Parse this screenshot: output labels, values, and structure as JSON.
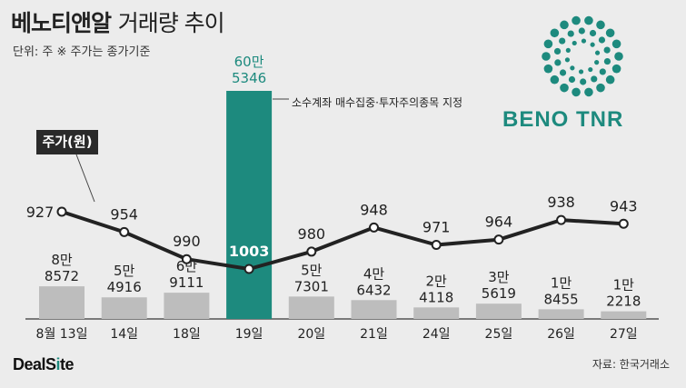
{
  "title": {
    "main": "베노티앤알",
    "sub": "거래량 추이"
  },
  "unit_note": "단위: 주  ※ 주가는 종가기준",
  "logo_text": "BENO TNR",
  "brand": {
    "part1": "DealS",
    "part2": "i",
    "part3": "te"
  },
  "source": "자료: 한국거래소",
  "annotation": "소수계좌 매수집중·투자주의종목 지정",
  "legend_label": "주가(원)",
  "colors": {
    "bar": "#bdbdbd",
    "highlight_bar": "#1d8a7e",
    "line": "#222222",
    "accent": "#1d8a7e"
  },
  "chart_data": {
    "type": "bar",
    "categories": [
      "8월 13일",
      "14일",
      "18일",
      "19일",
      "20일",
      "21일",
      "24일",
      "25일",
      "26일",
      "27일"
    ],
    "volume_labels": [
      [
        "8만",
        "8572"
      ],
      [
        "5만",
        "4916"
      ],
      [
        "6만",
        "9111"
      ],
      [
        "60만",
        "5346"
      ],
      [
        "5만",
        "7301"
      ],
      [
        "4만",
        "6432"
      ],
      [
        "2만",
        "4118"
      ],
      [
        "3만",
        "5619"
      ],
      [
        "1만",
        "8455"
      ],
      [
        "1만",
        "2218"
      ]
    ],
    "series": [
      {
        "values": [
          88572,
          54916,
          69111,
          605346,
          57301,
          46432,
          24118,
          35619,
          18455,
          12218
        ]
      },
      {
        "name": "주가(원)",
        "values": [
          927,
          954,
          990,
          1003,
          980,
          948,
          971,
          964,
          938,
          943
        ]
      }
    ],
    "highlight_index": 3
  }
}
